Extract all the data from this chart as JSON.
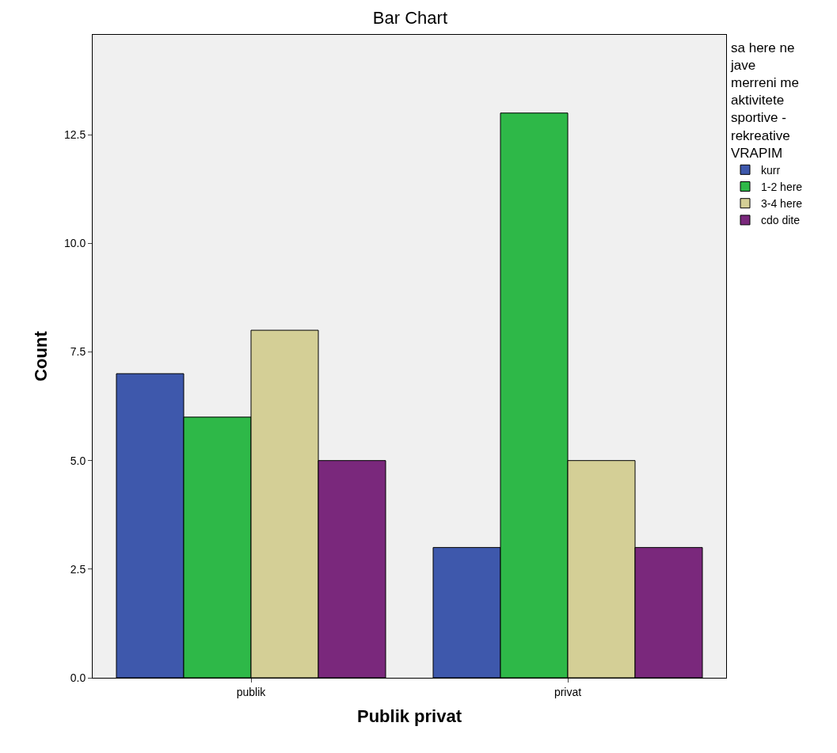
{
  "chart_data": {
    "type": "bar",
    "title": "Bar Chart",
    "xlabel": "Publik privat",
    "ylabel": "Count",
    "legend_title": "sa here ne jave merreni me aktivitete sportive - rekreative VRAPIM",
    "categories": [
      "publik",
      "privat"
    ],
    "series": [
      {
        "name": "kurr",
        "color": "#3e58ac",
        "values": [
          7,
          3
        ]
      },
      {
        "name": "1-2 here",
        "color": "#2eb848",
        "values": [
          6,
          13
        ]
      },
      {
        "name": "3-4 here",
        "color": "#d4cf96",
        "values": [
          8,
          5
        ]
      },
      {
        "name": "cdo dite",
        "color": "#7a287c",
        "values": [
          5,
          3
        ]
      }
    ],
    "ylim": [
      0,
      14.8
    ],
    "yticks": [
      {
        "value": 0,
        "label": "0.0"
      },
      {
        "value": 2.5,
        "label": "2.5"
      },
      {
        "value": 5,
        "label": "5.0"
      },
      {
        "value": 7.5,
        "label": "7.5"
      },
      {
        "value": 10,
        "label": "10.0"
      },
      {
        "value": 12.5,
        "label": "12.5"
      }
    ],
    "grid": false,
    "legend": "right"
  }
}
